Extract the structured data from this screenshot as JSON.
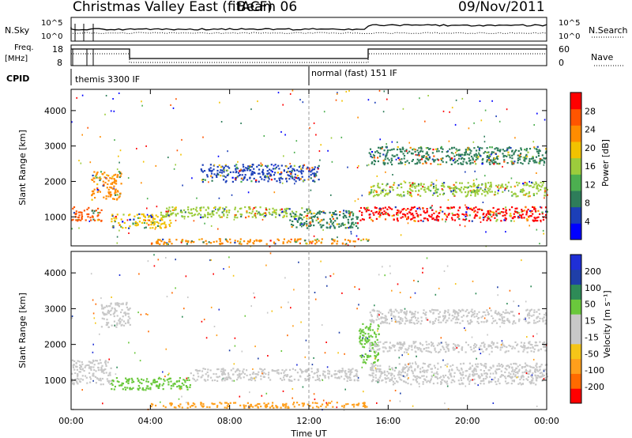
{
  "header": {
    "station": "Christmas Valley East (fitACF)",
    "beam": "Beam 06",
    "date": "09/Nov/2011"
  },
  "noise_panel": {
    "left_label": "N.Sky",
    "right_label": "N.Search",
    "left_ticks": [
      "10^5",
      "10^0"
    ],
    "right_ticks": [
      "10^5",
      "10^0"
    ]
  },
  "freq_panel": {
    "left_label_1": "Freq.",
    "left_label_2": "[MHz]",
    "right_label": "Nave",
    "left_ticks": [
      "18",
      "8"
    ],
    "right_ticks": [
      "60",
      "0"
    ]
  },
  "cpid": {
    "label": "CPID",
    "segments": [
      {
        "name": "themis 3300 IF",
        "start_ut": 0.0
      },
      {
        "name": "normal (fast) 151 IF",
        "start_ut": 12.0
      }
    ]
  },
  "colors": {
    "power_scale": [
      "#0000ff",
      "#1c3fb8",
      "#2e7d5a",
      "#4caf50",
      "#9ccc3c",
      "#f2c200",
      "#ff8c00",
      "#ff5500",
      "#ff0000"
    ],
    "velocity_scale": [
      "#ff0000",
      "#ff6a00",
      "#ff9f1c",
      "#f5c518",
      "#c8c8c8",
      "#c8c8c8",
      "#6ac83c",
      "#2e8b57",
      "#1f3fa8",
      "#1f2fd6"
    ]
  },
  "chart_data": [
    {
      "type": "heatmap",
      "name": "power",
      "ylabel": "Slant Range [km]",
      "ylim": [
        180,
        4600
      ],
      "yticks": [
        "1000",
        "2000",
        "3000",
        "4000"
      ],
      "xlim": [
        0,
        24
      ],
      "colorbar_label": "Power [dB]",
      "colorbar_ticks": [
        "28",
        "24",
        "20",
        "16",
        "12",
        "8",
        "4"
      ],
      "features": [
        {
          "x": [
            0.0,
            1.5
          ],
          "y": [
            900,
            1300
          ],
          "value_db": 26
        },
        {
          "x": [
            1.0,
            2.5
          ],
          "y": [
            1500,
            2300
          ],
          "value_db": 22
        },
        {
          "x": [
            2.0,
            5.0
          ],
          "y": [
            700,
            1100
          ],
          "value_db": 18
        },
        {
          "x": [
            4.5,
            12.0
          ],
          "y": [
            1000,
            1300
          ],
          "value_db": 14
        },
        {
          "x": [
            11.0,
            14.5
          ],
          "y": [
            700,
            1200
          ],
          "value_db": 10
        },
        {
          "x": [
            14.5,
            24.0
          ],
          "y": [
            900,
            1300
          ],
          "value_db": 28
        },
        {
          "x": [
            15.0,
            24.0
          ],
          "y": [
            1600,
            2000
          ],
          "value_db": 16
        },
        {
          "x": [
            15.0,
            24.0
          ],
          "y": [
            2500,
            3000
          ],
          "value_db": 8
        },
        {
          "x": [
            6.5,
            12.5
          ],
          "y": [
            2000,
            2500
          ],
          "value_db": 6
        },
        {
          "x": [
            4.0,
            15.0
          ],
          "y": [
            250,
            400
          ],
          "value_db": 20
        }
      ]
    },
    {
      "type": "heatmap",
      "name": "velocity",
      "ylabel": "Slant Range [km]",
      "ylim": [
        180,
        4600
      ],
      "yticks": [
        "1000",
        "2000",
        "3000",
        "4000"
      ],
      "xlabel": "Time UT",
      "xlim": [
        0,
        24
      ],
      "xticks": [
        "00:00",
        "04:00",
        "08:00",
        "12:00",
        "16:00",
        "20:00",
        "00:00"
      ],
      "colorbar_label": "Velocity [m s⁻¹]",
      "colorbar_ticks": [
        "200",
        "100",
        "50",
        "15",
        "-15",
        "-50",
        "-100",
        "-200"
      ],
      "features": [
        {
          "x": [
            0.0,
            2.0
          ],
          "y": [
            900,
            1600
          ],
          "value_ms": 0
        },
        {
          "x": [
            1.5,
            3.0
          ],
          "y": [
            2500,
            3200
          ],
          "value_ms": 0
        },
        {
          "x": [
            2.0,
            6.0
          ],
          "y": [
            750,
            1100
          ],
          "value_ms": 40
        },
        {
          "x": [
            6.0,
            14.5
          ],
          "y": [
            1000,
            1350
          ],
          "value_ms": 0
        },
        {
          "x": [
            14.5,
            15.5
          ],
          "y": [
            1500,
            2600
          ],
          "value_ms": 40
        },
        {
          "x": [
            15.0,
            24.0
          ],
          "y": [
            900,
            1500
          ],
          "value_ms": 0
        },
        {
          "x": [
            15.0,
            24.0
          ],
          "y": [
            1800,
            2100
          ],
          "value_ms": 0
        },
        {
          "x": [
            15.0,
            24.0
          ],
          "y": [
            2600,
            3000
          ],
          "value_ms": 0
        },
        {
          "x": [
            4.0,
            15.0
          ],
          "y": [
            250,
            400
          ],
          "value_ms": -70
        }
      ]
    }
  ]
}
